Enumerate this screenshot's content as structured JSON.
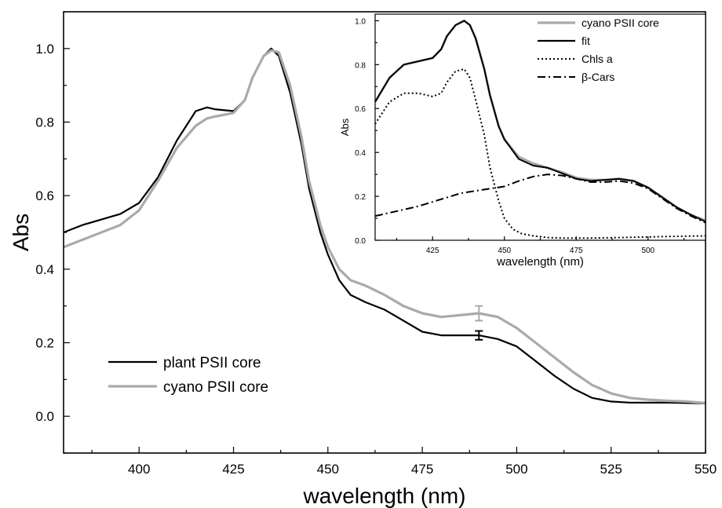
{
  "chart_data": [
    {
      "type": "line",
      "title": "",
      "xlabel": "wavelength (nm)",
      "ylabel": "Abs",
      "xlim": [
        380,
        550
      ],
      "ylim": [
        -0.1,
        1.1
      ],
      "xticks": [
        400,
        425,
        450,
        475,
        500,
        525,
        550
      ],
      "yticks": [
        0.0,
        0.2,
        0.4,
        0.6,
        0.8,
        1.0
      ],
      "xtick_labels": [
        "400",
        "425",
        "450",
        "475",
        "500",
        "525",
        "550"
      ],
      "ytick_labels": [
        "0.0",
        "0.2",
        "0.4",
        "0.6",
        "0.8",
        "1.0"
      ],
      "legend_position": "lower-left",
      "series": [
        {
          "name": "plant PSII core",
          "color": "#000000",
          "style": "solid",
          "x": [
            380,
            385,
            390,
            395,
            400,
            405,
            410,
            415,
            418,
            420,
            425,
            428,
            430,
            433,
            435,
            437,
            440,
            443,
            445,
            448,
            450,
            453,
            456,
            460,
            465,
            470,
            475,
            480,
            485,
            490,
            495,
            500,
            505,
            510,
            515,
            520,
            525,
            530,
            535,
            540,
            545,
            550
          ],
          "y": [
            0.5,
            0.52,
            0.535,
            0.55,
            0.58,
            0.65,
            0.75,
            0.83,
            0.84,
            0.835,
            0.83,
            0.86,
            0.92,
            0.98,
            1.0,
            0.98,
            0.88,
            0.74,
            0.62,
            0.5,
            0.44,
            0.37,
            0.33,
            0.31,
            0.29,
            0.26,
            0.23,
            0.22,
            0.22,
            0.22,
            0.21,
            0.19,
            0.15,
            0.11,
            0.075,
            0.05,
            0.04,
            0.037,
            0.037,
            0.037,
            0.036,
            0.035
          ],
          "error_bar": {
            "x": 490,
            "y": 0.22,
            "err": 0.012
          }
        },
        {
          "name": "cyano PSII core",
          "color": "#aaaaaa",
          "style": "solid",
          "x": [
            380,
            385,
            390,
            395,
            400,
            405,
            410,
            415,
            418,
            420,
            425,
            428,
            430,
            433,
            435,
            437,
            440,
            443,
            445,
            448,
            450,
            453,
            456,
            460,
            465,
            470,
            475,
            480,
            485,
            490,
            495,
            500,
            505,
            510,
            515,
            520,
            525,
            530,
            535,
            540,
            545,
            550
          ],
          "y": [
            0.46,
            0.48,
            0.5,
            0.52,
            0.56,
            0.64,
            0.73,
            0.79,
            0.81,
            0.815,
            0.825,
            0.86,
            0.92,
            0.98,
            0.995,
            0.99,
            0.9,
            0.76,
            0.64,
            0.52,
            0.46,
            0.4,
            0.37,
            0.355,
            0.33,
            0.3,
            0.28,
            0.27,
            0.275,
            0.28,
            0.27,
            0.24,
            0.2,
            0.16,
            0.12,
            0.085,
            0.062,
            0.05,
            0.045,
            0.042,
            0.04,
            0.036
          ],
          "error_bar": {
            "x": 490,
            "y": 0.28,
            "err": 0.02
          }
        }
      ]
    },
    {
      "type": "line",
      "title": "",
      "xlabel": "wavelength (nm)",
      "ylabel": "Abs",
      "xlim": [
        405,
        520
      ],
      "ylim": [
        0.0,
        1.03
      ],
      "xticks": [
        425,
        450,
        475,
        500
      ],
      "yticks": [
        0.0,
        0.2,
        0.4,
        0.6,
        0.8,
        1.0
      ],
      "xtick_labels": [
        "425",
        "450",
        "475",
        "500"
      ],
      "ytick_labels": [
        "0.0",
        "0.2",
        "0.4",
        "0.6",
        "0.8",
        "1.0"
      ],
      "legend_position": "top-right",
      "series": [
        {
          "name": "cyano PSII core",
          "color": "#aaaaaa",
          "style": "solid",
          "x": [
            405,
            410,
            415,
            420,
            425,
            428,
            430,
            433,
            436,
            438,
            440,
            443,
            445,
            448,
            450,
            455,
            460,
            465,
            470,
            475,
            480,
            485,
            490,
            495,
            500,
            505,
            510,
            515,
            520
          ],
          "y": [
            0.63,
            0.74,
            0.8,
            0.815,
            0.83,
            0.87,
            0.93,
            0.98,
            1.0,
            0.98,
            0.92,
            0.78,
            0.66,
            0.52,
            0.46,
            0.38,
            0.35,
            0.33,
            0.31,
            0.285,
            0.275,
            0.275,
            0.28,
            0.27,
            0.24,
            0.195,
            0.15,
            0.115,
            0.09
          ]
        },
        {
          "name": "fit",
          "color": "#000000",
          "style": "solid",
          "x": [
            405,
            410,
            415,
            420,
            425,
            428,
            430,
            433,
            436,
            438,
            440,
            443,
            445,
            448,
            450,
            455,
            460,
            465,
            470,
            475,
            480,
            485,
            490,
            495,
            500,
            505,
            510,
            515,
            520
          ],
          "y": [
            0.63,
            0.74,
            0.8,
            0.815,
            0.83,
            0.87,
            0.93,
            0.98,
            1.0,
            0.98,
            0.92,
            0.78,
            0.66,
            0.52,
            0.46,
            0.37,
            0.34,
            0.33,
            0.305,
            0.28,
            0.27,
            0.275,
            0.28,
            0.27,
            0.24,
            0.195,
            0.15,
            0.115,
            0.085
          ]
        },
        {
          "name": "Chls a",
          "color": "#000000",
          "style": "dotted",
          "x": [
            405,
            410,
            415,
            420,
            425,
            428,
            430,
            433,
            436,
            438,
            440,
            443,
            445,
            448,
            450,
            453,
            456,
            460,
            465,
            470,
            480,
            490,
            500,
            510,
            520
          ],
          "y": [
            0.53,
            0.63,
            0.67,
            0.67,
            0.655,
            0.67,
            0.72,
            0.77,
            0.78,
            0.74,
            0.64,
            0.48,
            0.33,
            0.18,
            0.1,
            0.05,
            0.03,
            0.02,
            0.012,
            0.01,
            0.01,
            0.012,
            0.015,
            0.018,
            0.02
          ]
        },
        {
          "name": "β-Cars",
          "color": "#000000",
          "style": "dashdot",
          "x": [
            405,
            410,
            415,
            420,
            425,
            430,
            435,
            440,
            445,
            450,
            455,
            460,
            465,
            470,
            475,
            480,
            485,
            490,
            495,
            500,
            505,
            510,
            515,
            520
          ],
          "y": [
            0.11,
            0.125,
            0.14,
            0.155,
            0.175,
            0.195,
            0.215,
            0.225,
            0.235,
            0.245,
            0.27,
            0.29,
            0.3,
            0.295,
            0.28,
            0.265,
            0.265,
            0.27,
            0.26,
            0.235,
            0.19,
            0.145,
            0.11,
            0.08
          ]
        }
      ]
    }
  ]
}
